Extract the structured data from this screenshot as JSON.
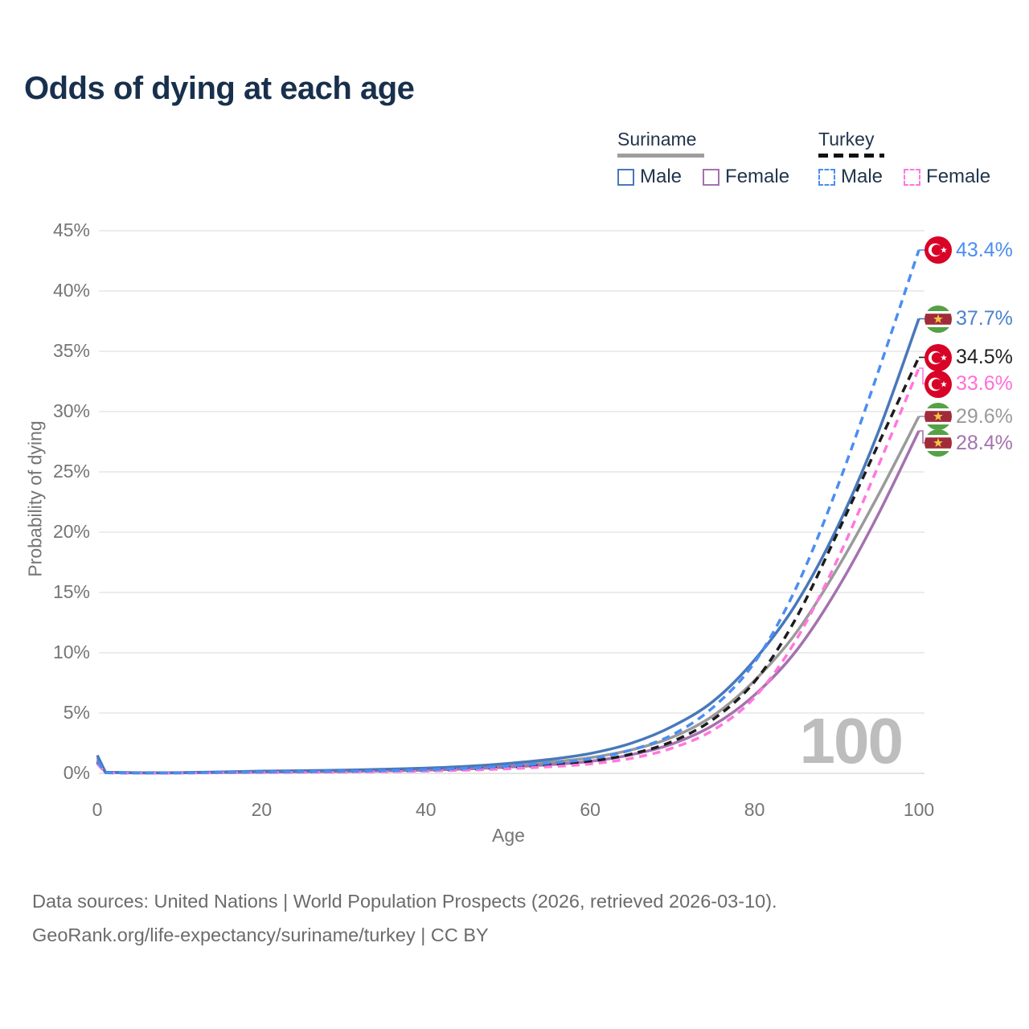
{
  "header": {
    "title": "Odds of dying at each age"
  },
  "legend": {
    "groups": [
      {
        "country": "Suriname",
        "line_style": "solid",
        "underline_color": "#9e9e9e",
        "items": [
          {
            "label": "Male",
            "color": "#4878ba",
            "dashed": false
          },
          {
            "label": "Female",
            "color": "#a472ae",
            "dashed": false
          }
        ]
      },
      {
        "country": "Turkey",
        "line_style": "dashed",
        "underline_color": "#111111",
        "items": [
          {
            "label": "Male",
            "color": "#4b8df2",
            "dashed": true
          },
          {
            "label": "Female",
            "color": "#ff77dd",
            "dashed": true
          }
        ]
      }
    ]
  },
  "chart_data": {
    "type": "line",
    "title": "Odds of dying at each age",
    "xlabel": "Age",
    "ylabel": "Probability of dying",
    "xlim": [
      0,
      100
    ],
    "ylim": [
      0,
      45
    ],
    "grid": "horizontal",
    "legend_position": "top-right",
    "watermark": "100",
    "x_ticks": [
      {
        "value": 0,
        "label": "0"
      },
      {
        "value": 20,
        "label": "20"
      },
      {
        "value": 40,
        "label": "40"
      },
      {
        "value": 60,
        "label": "60"
      },
      {
        "value": 80,
        "label": "80"
      },
      {
        "value": 100,
        "label": "100"
      }
    ],
    "y_ticks": [
      {
        "value": 0,
        "label": "0%"
      },
      {
        "value": 5,
        "label": "5%"
      },
      {
        "value": 10,
        "label": "10%"
      },
      {
        "value": 15,
        "label": "15%"
      },
      {
        "value": 20,
        "label": "20%"
      },
      {
        "value": 25,
        "label": "25%"
      },
      {
        "value": 30,
        "label": "30%"
      },
      {
        "value": 35,
        "label": "35%"
      },
      {
        "value": 40,
        "label": "40%"
      },
      {
        "value": 45,
        "label": "45%"
      }
    ],
    "ages": [
      0,
      1,
      5,
      10,
      15,
      20,
      25,
      30,
      35,
      40,
      45,
      50,
      55,
      60,
      65,
      70,
      75,
      80,
      85,
      90,
      95,
      100
    ],
    "series": [
      {
        "name": "Suriname Total",
        "country": "Suriname",
        "sex": "Both",
        "color": "#9a9a9a",
        "dashed": false,
        "flag": "suriname",
        "end_label": "29.6%",
        "label_color": "#9a9a9a",
        "values": [
          1.3,
          0.08,
          0.04,
          0.05,
          0.1,
          0.14,
          0.18,
          0.22,
          0.27,
          0.35,
          0.47,
          0.65,
          0.92,
          1.3,
          1.95,
          3.0,
          4.8,
          7.7,
          11.6,
          16.9,
          23.0,
          29.6
        ]
      },
      {
        "name": "Suriname Female",
        "country": "Suriname",
        "sex": "Female",
        "color": "#a472ae",
        "dashed": false,
        "flag": "suriname",
        "end_label": "28.4%",
        "label_color": "#a472ae",
        "values": [
          1.1,
          0.07,
          0.03,
          0.04,
          0.07,
          0.1,
          0.13,
          0.16,
          0.21,
          0.27,
          0.37,
          0.52,
          0.72,
          1.0,
          1.55,
          2.45,
          4.0,
          6.5,
          10.1,
          15.2,
          21.4,
          28.4
        ]
      },
      {
        "name": "Suriname Male",
        "country": "Suriname",
        "sex": "Male",
        "color": "#4878ba",
        "dashed": false,
        "flag": "suriname",
        "end_label": "37.7%",
        "label_color": "#4c82cc",
        "values": [
          1.5,
          0.09,
          0.05,
          0.06,
          0.12,
          0.18,
          0.22,
          0.27,
          0.34,
          0.43,
          0.58,
          0.82,
          1.15,
          1.65,
          2.5,
          3.9,
          6.0,
          9.4,
          14.0,
          20.3,
          28.2,
          37.7
        ]
      },
      {
        "name": "Turkey Total",
        "country": "Turkey",
        "sex": "Both",
        "color": "#1c1c1c",
        "dashed": true,
        "flag": "turkey",
        "end_label": "34.5%",
        "label_color": "#222222",
        "values": [
          0.9,
          0.05,
          0.03,
          0.04,
          0.07,
          0.1,
          0.12,
          0.15,
          0.19,
          0.25,
          0.35,
          0.5,
          0.72,
          1.0,
          1.6,
          2.65,
          4.5,
          7.6,
          12.8,
          19.8,
          27.2,
          34.5
        ]
      },
      {
        "name": "Turkey Female",
        "country": "Turkey",
        "sex": "Female",
        "color": "#ff77dd",
        "dashed": true,
        "flag": "turkey",
        "end_label": "33.6%",
        "label_color": "#ff6ed8",
        "values": [
          0.8,
          0.05,
          0.02,
          0.03,
          0.05,
          0.07,
          0.09,
          0.11,
          0.14,
          0.19,
          0.27,
          0.38,
          0.55,
          0.78,
          1.25,
          2.1,
          3.6,
          6.3,
          11.0,
          17.6,
          25.4,
          33.6
        ]
      },
      {
        "name": "Turkey Male",
        "country": "Turkey",
        "sex": "Male",
        "color": "#4b8df2",
        "dashed": true,
        "flag": "turkey",
        "end_label": "43.4%",
        "label_color": "#4b8df2",
        "values": [
          1.0,
          0.06,
          0.03,
          0.04,
          0.08,
          0.12,
          0.15,
          0.18,
          0.23,
          0.3,
          0.42,
          0.6,
          0.85,
          1.2,
          1.95,
          3.2,
          5.5,
          9.2,
          15.3,
          23.6,
          33.2,
          43.4
        ]
      }
    ]
  },
  "flags": {
    "turkey": {
      "bg": "#d80327",
      "crescent": "#ffffff",
      "star": "#ffffff"
    },
    "suriname": {
      "green": "#55a146",
      "white": "#ffffff",
      "red": "#a22b3a",
      "star": "#edc944"
    }
  },
  "footer": {
    "line1": "Data sources: United Nations | World Population Prospects (2026, retrieved 2026-03-10).",
    "line2": "GeoRank.org/life-expectancy/suriname/turkey | CC BY"
  }
}
